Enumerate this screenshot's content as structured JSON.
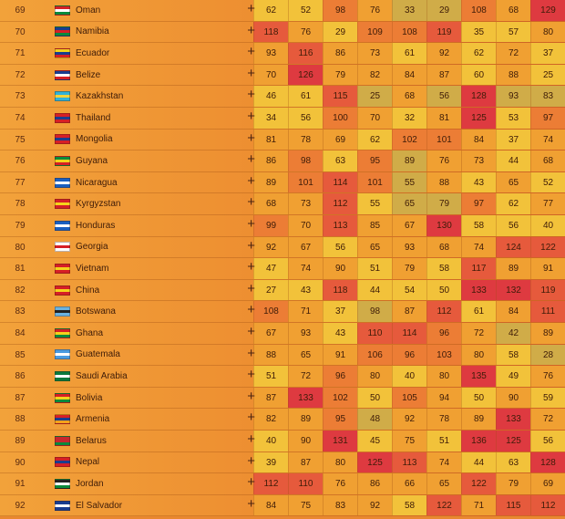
{
  "rows": [
    {
      "rank": "69",
      "country": "Oman",
      "flag": [
        "#d61f26",
        "#ffffff",
        "#0a8a3c"
      ],
      "values": [
        62,
        52,
        98,
        76,
        33,
        29,
        108,
        68,
        129
      ]
    },
    {
      "rank": "70",
      "country": "Namibia",
      "flag": [
        "#1a3d8f",
        "#d61f26",
        "#0a8a3c"
      ],
      "values": [
        118,
        76,
        29,
        109,
        108,
        119,
        35,
        57,
        80
      ]
    },
    {
      "rank": "71",
      "country": "Ecuador",
      "flag": [
        "#f5d21c",
        "#1a3d8f",
        "#d61f26"
      ],
      "values": [
        93,
        116,
        86,
        73,
        61,
        92,
        62,
        72,
        37
      ]
    },
    {
      "rank": "72",
      "country": "Belize",
      "flag": [
        "#1a3d8f",
        "#ffffff",
        "#d61f26"
      ],
      "values": [
        70,
        126,
        79,
        82,
        84,
        87,
        60,
        88,
        25
      ]
    },
    {
      "rank": "73",
      "country": "Kazakhstan",
      "flag": [
        "#31b2d8",
        "#f2d238",
        "#31b2d8"
      ],
      "values": [
        46,
        61,
        115,
        25,
        68,
        56,
        128,
        93,
        83
      ]
    },
    {
      "rank": "74",
      "country": "Thailand",
      "flag": [
        "#d61f26",
        "#1a3d8f",
        "#d61f26"
      ],
      "values": [
        34,
        56,
        100,
        70,
        32,
        81,
        125,
        53,
        97
      ]
    },
    {
      "rank": "75",
      "country": "Mongolia",
      "flag": [
        "#d61f26",
        "#1a3d8f",
        "#d61f26"
      ],
      "values": [
        81,
        78,
        69,
        62,
        102,
        101,
        84,
        37,
        74
      ]
    },
    {
      "rank": "76",
      "country": "Guyana",
      "flag": [
        "#0a8a3c",
        "#f5d21c",
        "#d61f26"
      ],
      "values": [
        86,
        98,
        63,
        95,
        89,
        76,
        73,
        44,
        68
      ]
    },
    {
      "rank": "77",
      "country": "Nicaragua",
      "flag": [
        "#1a5fc0",
        "#ffffff",
        "#1a5fc0"
      ],
      "values": [
        89,
        101,
        114,
        101,
        55,
        88,
        43,
        65,
        52
      ]
    },
    {
      "rank": "78",
      "country": "Kyrgyzstan",
      "flag": [
        "#d61f26",
        "#f5d21c",
        "#d61f26"
      ],
      "values": [
        68,
        73,
        112,
        55,
        65,
        79,
        97,
        62,
        77
      ]
    },
    {
      "rank": "79",
      "country": "Honduras",
      "flag": [
        "#1a5fc0",
        "#ffffff",
        "#1a5fc0"
      ],
      "values": [
        99,
        70,
        113,
        85,
        67,
        130,
        58,
        56,
        40
      ]
    },
    {
      "rank": "80",
      "country": "Georgia",
      "flag": [
        "#ffffff",
        "#d61f26",
        "#ffffff"
      ],
      "values": [
        92,
        67,
        56,
        65,
        93,
        68,
        74,
        124,
        122
      ]
    },
    {
      "rank": "81",
      "country": "Vietnam",
      "flag": [
        "#d61f26",
        "#f5d21c",
        "#d61f26"
      ],
      "values": [
        47,
        74,
        90,
        51,
        79,
        58,
        117,
        89,
        91
      ]
    },
    {
      "rank": "82",
      "country": "China",
      "flag": [
        "#d61f26",
        "#f5d21c",
        "#d61f26"
      ],
      "values": [
        27,
        43,
        118,
        44,
        54,
        50,
        133,
        132,
        119
      ]
    },
    {
      "rank": "83",
      "country": "Botswana",
      "flag": [
        "#6ab2e0",
        "#222222",
        "#6ab2e0"
      ],
      "values": [
        108,
        71,
        37,
        98,
        87,
        112,
        61,
        84,
        111
      ]
    },
    {
      "rank": "84",
      "country": "Ghana",
      "flag": [
        "#d61f26",
        "#f5d21c",
        "#0a8a3c"
      ],
      "values": [
        67,
        93,
        43,
        110,
        114,
        96,
        72,
        42,
        89
      ]
    },
    {
      "rank": "85",
      "country": "Guatemala",
      "flag": [
        "#4a9be0",
        "#ffffff",
        "#4a9be0"
      ],
      "values": [
        88,
        65,
        91,
        106,
        96,
        103,
        80,
        58,
        28
      ]
    },
    {
      "rank": "86",
      "country": "Saudi Arabia",
      "flag": [
        "#0a7a3c",
        "#ffffff",
        "#0a7a3c"
      ],
      "values": [
        51,
        72,
        96,
        80,
        40,
        80,
        135,
        49,
        76
      ]
    },
    {
      "rank": "87",
      "country": "Bolivia",
      "flag": [
        "#d61f26",
        "#f5d21c",
        "#0a8a3c"
      ],
      "values": [
        87,
        133,
        102,
        50,
        105,
        94,
        50,
        90,
        59
      ]
    },
    {
      "rank": "88",
      "country": "Armenia",
      "flag": [
        "#d61f26",
        "#1a3d8f",
        "#f5a21c"
      ],
      "values": [
        82,
        89,
        95,
        48,
        92,
        78,
        89,
        133,
        72
      ]
    },
    {
      "rank": "89",
      "country": "Belarus",
      "flag": [
        "#c8262e",
        "#c8262e",
        "#0a8a3c"
      ],
      "values": [
        40,
        90,
        131,
        45,
        75,
        51,
        136,
        125,
        56
      ]
    },
    {
      "rank": "90",
      "country": "Nepal",
      "flag": [
        "#d61f26",
        "#1a3d8f",
        "#d61f26"
      ],
      "values": [
        39,
        87,
        80,
        125,
        113,
        74,
        44,
        63,
        128
      ]
    },
    {
      "rank": "91",
      "country": "Jordan",
      "flag": [
        "#222222",
        "#ffffff",
        "#0a8a3c"
      ],
      "values": [
        112,
        110,
        76,
        86,
        66,
        65,
        122,
        79,
        69
      ]
    },
    {
      "rank": "92",
      "country": "El Salvador",
      "flag": [
        "#1a3d8f",
        "#ffffff",
        "#1a3d8f"
      ],
      "values": [
        84,
        75,
        83,
        92,
        58,
        122,
        71,
        115,
        112
      ]
    }
  ],
  "overrides": [
    {
      "row": 0,
      "col": 4
    },
    {
      "row": 0,
      "col": 5
    },
    {
      "row": 4,
      "col": 3
    },
    {
      "row": 4,
      "col": 5
    },
    {
      "row": 4,
      "col": 7
    },
    {
      "row": 4,
      "col": 8
    },
    {
      "row": 7,
      "col": 4
    },
    {
      "row": 8,
      "col": 4
    },
    {
      "row": 9,
      "col": 4
    },
    {
      "row": 9,
      "col": 5
    },
    {
      "row": 14,
      "col": 3
    },
    {
      "row": 15,
      "col": 7
    },
    {
      "row": 16,
      "col": 8
    },
    {
      "row": 19,
      "col": 3
    }
  ]
}
